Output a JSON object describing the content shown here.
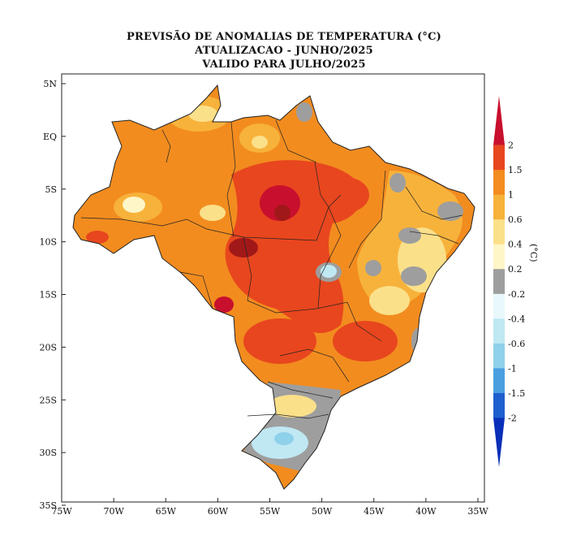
{
  "titles": {
    "line1": "PREVISÃO DE ANOMALIAS DE TEMPERATURA (°C)",
    "line2": "ATUALIZACAO - JUNHO/2025",
    "line3": "VALIDO PARA JULHO/2025"
  },
  "axes": {
    "lat_labels": [
      "5N",
      "EQ",
      "5S",
      "10S",
      "15S",
      "20S",
      "25S",
      "30S",
      "35S"
    ],
    "lon_labels": [
      "75W",
      "70W",
      "65W",
      "60W",
      "55W",
      "50W",
      "45W",
      "40W",
      "35W"
    ]
  },
  "colorbar": {
    "unit_label": "(°C)",
    "tick_labels": [
      "2",
      "1.5",
      "1",
      "0.6",
      "0.4",
      "0.2",
      "-0.2",
      "-0.4",
      "-0.6",
      "-1",
      "-1.5",
      "-2"
    ],
    "colors": [
      "#c8102e",
      "#e8461e",
      "#f28c1f",
      "#f7b23b",
      "#fbe08a",
      "#fff6c8",
      "#9e9e9e",
      "#e8f8fb",
      "#bfe8f3",
      "#8fd0ea",
      "#4a9fe0",
      "#1f5ecf",
      "#0a2fb8"
    ]
  },
  "colors": {
    "extreme_warm": "#a11818",
    "very_warm": "#e8461e",
    "warm": "#f28c1f",
    "moderate": "#f7b23b",
    "mild": "#fbe08a",
    "slight": "#fff6c8",
    "neutral": "#9e9e9e",
    "cool": "#bfe8f3"
  }
}
